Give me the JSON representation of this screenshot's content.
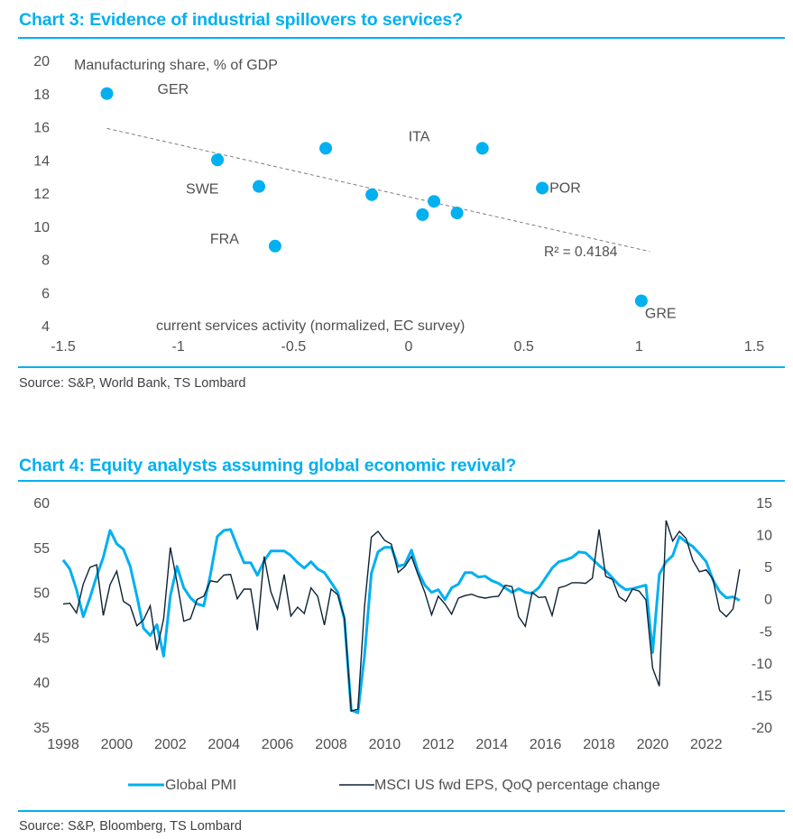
{
  "charts": [
    {
      "title": "Chart 3: Evidence of industrial spillovers to services?",
      "source": "Source: S&P, World Bank, TS Lombard"
    },
    {
      "title": "Chart 4: Equity analysts assuming global economic revival?",
      "source": "Source: S&P, Bloomberg, TS Lombard"
    }
  ],
  "chart_data": [
    {
      "type": "scatter",
      "title": "Chart 3: Evidence of industrial spillovers to services?",
      "xlabel": "current services activity (normalized, EC survey)",
      "ylabel": "Manufacturing share, % of GDP",
      "xlim": [
        -1.5,
        1.5
      ],
      "ylim": [
        4,
        20
      ],
      "x_ticks": [
        "-1.5",
        "-1",
        "-0.5",
        "0",
        "0.5",
        "1",
        "1.5"
      ],
      "y_ticks": [
        "20",
        "18",
        "16",
        "14",
        "12",
        "10",
        "8",
        "6",
        "4"
      ],
      "grid": false,
      "marker_color": "#00b0f0",
      "points": [
        {
          "label": "GER",
          "x": -1.31,
          "y": 18.0,
          "show_label": true
        },
        {
          "label": "",
          "x": -0.83,
          "y": 14.0,
          "show_label": false
        },
        {
          "label": "SWE",
          "x": -0.65,
          "y": 12.4,
          "show_label": true
        },
        {
          "label": "FRA",
          "x": -0.58,
          "y": 8.8,
          "show_label": true
        },
        {
          "label": "",
          "x": -0.36,
          "y": 14.7,
          "show_label": false
        },
        {
          "label": "",
          "x": -0.16,
          "y": 11.9,
          "show_label": false
        },
        {
          "label": "",
          "x": 0.06,
          "y": 10.7,
          "show_label": false
        },
        {
          "label": "",
          "x": 0.11,
          "y": 11.5,
          "show_label": false
        },
        {
          "label": "",
          "x": 0.21,
          "y": 10.8,
          "show_label": false
        },
        {
          "label": "ITA",
          "x": 0.32,
          "y": 14.7,
          "show_label": true
        },
        {
          "label": "POR",
          "x": 0.58,
          "y": 12.3,
          "show_label": true
        },
        {
          "label": "GRE",
          "x": 1.01,
          "y": 5.5,
          "show_label": true
        }
      ],
      "trendline": {
        "style": "dashed",
        "x": [
          -1.31,
          1.0
        ],
        "y": [
          15.9,
          8.5
        ],
        "r_squared_label": "R² = 0.4184"
      }
    },
    {
      "type": "line",
      "title": "Chart 4: Equity analysts assuming global economic revival?",
      "x_start": 1998.0,
      "x_step": 0.25,
      "xlim": [
        1998,
        2024
      ],
      "x_ticks": [
        "1998",
        "2000",
        "2002",
        "2004",
        "2006",
        "2008",
        "2010",
        "2012",
        "2014",
        "2016",
        "2018",
        "2020",
        "2022"
      ],
      "y_left": {
        "lim": [
          35,
          60
        ],
        "ticks": [
          "60",
          "55",
          "50",
          "45",
          "40",
          "35"
        ]
      },
      "y_right": {
        "lim": [
          -20,
          15
        ],
        "ticks": [
          "15",
          "10",
          "5",
          "0",
          "-5",
          "-10",
          "-15",
          "-20"
        ]
      },
      "legend": "bottom",
      "grid": false,
      "series": [
        {
          "name": "Global PMI",
          "axis": "left",
          "color": "#00b0f0",
          "values": [
            53.6,
            52.6,
            50.3,
            47.3,
            49.4,
            51.8,
            53.9,
            56.9,
            55.4,
            54.8,
            52.9,
            49.6,
            46.0,
            45.2,
            46.4,
            42.9,
            49.6,
            52.9,
            50.5,
            49.4,
            48.7,
            48.5,
            52.0,
            56.2,
            56.9,
            57.0,
            55.1,
            53.3,
            53.3,
            51.9,
            53.5,
            54.6,
            54.6,
            54.6,
            54.1,
            53.3,
            52.7,
            53.4,
            52.6,
            52.2,
            51.1,
            50.0,
            47.0,
            36.9,
            36.6,
            43.0,
            52.1,
            54.5,
            55.0,
            55.0,
            52.9,
            53.1,
            54.7,
            52.3,
            50.8,
            50.0,
            50.3,
            49.2,
            50.5,
            50.9,
            52.2,
            52.2,
            51.7,
            51.8,
            51.3,
            51.0,
            50.5,
            50.0,
            50.4,
            50.0,
            49.9,
            50.5,
            51.6,
            52.7,
            53.4,
            53.6,
            53.9,
            54.5,
            54.4,
            53.7,
            53.0,
            52.4,
            51.6,
            50.8,
            50.3,
            50.4,
            50.6,
            50.8,
            43.3,
            52.0,
            53.4,
            54.1,
            56.2,
            55.6,
            55.1,
            54.3,
            53.4,
            51.4,
            50.1,
            49.4,
            49.5,
            49.1
          ]
        },
        {
          "name": "MSCI US fwd EPS, QoQ percentage change",
          "axis": "right",
          "color": "#0d2233",
          "values": [
            -0.8,
            -0.7,
            -2.2,
            2.3,
            4.9,
            5.3,
            -2.6,
            2.2,
            4.3,
            -0.4,
            -1.1,
            -4.2,
            -3.3,
            -1.1,
            -8.0,
            -3.1,
            8.0,
            2.6,
            -3.5,
            -3.1,
            -0.1,
            0.4,
            2.8,
            2.6,
            3.7,
            3.8,
            0.0,
            1.5,
            1.5,
            -4.9,
            6.6,
            1.1,
            -1.6,
            3.8,
            -2.7,
            -1.3,
            -2.3,
            1.7,
            0.4,
            -4.1,
            1.5,
            0.6,
            -3.0,
            -17.5,
            -17.2,
            -1.1,
            9.6,
            10.5,
            9.1,
            8.5,
            4.1,
            5.0,
            6.6,
            3.7,
            1.0,
            -2.5,
            0.4,
            -0.8,
            -2.4,
            0.1,
            0.5,
            0.7,
            0.3,
            0.1,
            0.3,
            0.4,
            2.1,
            1.9,
            -2.8,
            -4.3,
            1.0,
            0.2,
            0.3,
            -2.6,
            1.7,
            2.0,
            2.5,
            2.5,
            2.4,
            3.2,
            10.8,
            3.5,
            3.0,
            0.3,
            -0.4,
            1.5,
            1.2,
            -0.2,
            -10.8,
            -13.6,
            12.2,
            9.0,
            10.5,
            9.4,
            6.0,
            4.2,
            4.5,
            3.1,
            -1.8,
            -2.8,
            -1.6,
            4.6
          ]
        }
      ]
    }
  ]
}
